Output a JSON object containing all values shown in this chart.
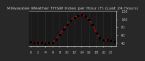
{
  "title": "Milwaukee Weather THSW Index per Hour (F) (Last 24 Hours)",
  "hours": [
    0,
    1,
    2,
    3,
    4,
    5,
    6,
    7,
    8,
    9,
    10,
    11,
    12,
    13,
    14,
    15,
    16,
    17,
    18,
    19,
    20,
    21,
    22,
    23
  ],
  "values": [
    42,
    41,
    40,
    40,
    39,
    40,
    41,
    50,
    62,
    75,
    88,
    98,
    105,
    110,
    112,
    108,
    100,
    88,
    65,
    52,
    48,
    47,
    46,
    45
  ],
  "yticks": [
    40,
    60,
    80,
    100,
    120
  ],
  "ytick_labels": [
    "40",
    "60",
    "80",
    "100",
    "120"
  ],
  "ylim": [
    32,
    122
  ],
  "xlim": [
    -0.5,
    23.5
  ],
  "bg_color": "#282828",
  "plot_bg": "#1a1a1a",
  "line_color": "#ff0000",
  "marker_color": "#000000",
  "grid_color": "#555555",
  "title_color": "#cccccc",
  "tick_color": "#cccccc",
  "title_fontsize": 4.5,
  "tick_fontsize": 3.5,
  "line_width": 0.9,
  "marker_size": 1.5
}
